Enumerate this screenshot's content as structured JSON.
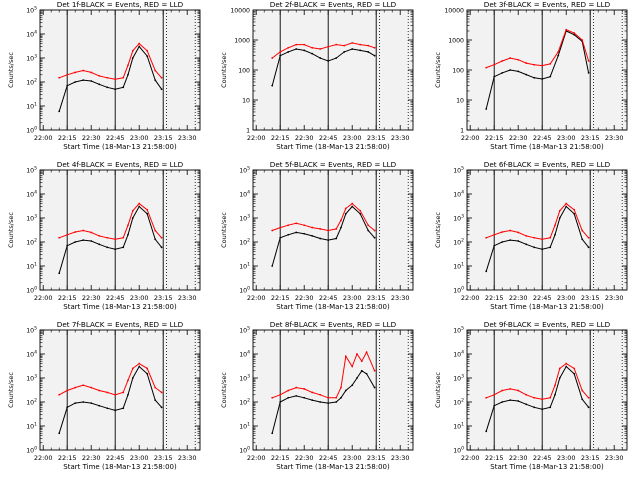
{
  "figure": {
    "xlabel": "Start Time (18-Mar-13 21:58:00)",
    "ylabel": "Counts/sec",
    "x_tick_labels": [
      "22:00",
      "22:15",
      "22:30",
      "22:45",
      "23:00",
      "23:15",
      "23:30"
    ],
    "colors": {
      "events": "#000000",
      "lld": "#ff0000",
      "background": "#f2f2f2"
    }
  },
  "chart_data": [
    {
      "type": "line",
      "title": "Det 1f-BLACK = Events, RED = LLD",
      "xlabel": "Start Time (18-Mar-13 21:58:00)",
      "ylabel": "Counts/sec",
      "x_ticks": [
        "22:00",
        "22:15",
        "22:30",
        "22:45",
        "23:00",
        "23:15",
        "23:30"
      ],
      "xlim": [
        "21:58",
        "23:38"
      ],
      "y_scale": "log",
      "ylim": [
        1,
        100000
      ],
      "y_ticks": [
        "10^0",
        "10^1",
        "10^2",
        "10^3",
        "10^4",
        "10^5"
      ],
      "vertical_lines_solid": [
        "22:15",
        "22:45",
        "23:15"
      ],
      "vertical_lines_dotted": [
        "23:17",
        "23:35"
      ],
      "x": [
        "22:10",
        "22:15",
        "22:20",
        "22:25",
        "22:30",
        "22:35",
        "22:40",
        "22:45",
        "22:50",
        "22:53",
        "22:56",
        "23:00",
        "23:05",
        "23:10",
        "23:14"
      ],
      "series": [
        {
          "name": "Events",
          "color": "#000000",
          "values": [
            6,
            70,
            100,
            120,
            110,
            80,
            60,
            50,
            60,
            200,
            1000,
            3000,
            1200,
            120,
            50
          ]
        },
        {
          "name": "LLD",
          "color": "#ff0000",
          "values": [
            150,
            200,
            250,
            300,
            250,
            180,
            150,
            130,
            150,
            500,
            2000,
            4000,
            2000,
            300,
            150
          ]
        }
      ]
    },
    {
      "type": "line",
      "title": "Det 2f-BLACK = Events, RED = LLD",
      "xlabel": "Start Time (18-Mar-13 21:58:00)",
      "ylabel": "Counts/sec",
      "x_ticks": [
        "22:00",
        "22:15",
        "22:30",
        "22:45",
        "23:00",
        "23:15",
        "23:30"
      ],
      "xlim": [
        "21:58",
        "23:38"
      ],
      "y_scale": "log",
      "ylim": [
        1,
        10000
      ],
      "y_ticks": [
        "1",
        "10",
        "100",
        "1000",
        "10000"
      ],
      "vertical_lines_solid": [
        "22:15",
        "22:45",
        "23:15"
      ],
      "vertical_lines_dotted": [
        "23:17",
        "23:35"
      ],
      "x": [
        "22:10",
        "22:15",
        "22:20",
        "22:25",
        "22:30",
        "22:35",
        "22:40",
        "22:45",
        "22:50",
        "22:55",
        "23:00",
        "23:05",
        "23:10",
        "23:14"
      ],
      "series": [
        {
          "name": "Events",
          "color": "#000000",
          "values": [
            30,
            300,
            400,
            500,
            450,
            350,
            250,
            200,
            250,
            400,
            500,
            450,
            400,
            300
          ]
        },
        {
          "name": "LLD",
          "color": "#ff0000",
          "values": [
            250,
            400,
            550,
            700,
            700,
            550,
            500,
            600,
            700,
            650,
            800,
            700,
            650,
            550
          ]
        }
      ]
    },
    {
      "type": "line",
      "title": "Det 3f-BLACK = Events, RED = LLD",
      "xlabel": "Start Time (18-Mar-13 21:58:00)",
      "ylabel": "Counts/sec",
      "x_ticks": [
        "22:00",
        "22:15",
        "22:30",
        "22:45",
        "23:00",
        "23:15",
        "23:30"
      ],
      "xlim": [
        "21:58",
        "23:38"
      ],
      "y_scale": "log",
      "ylim": [
        1,
        10000
      ],
      "y_ticks": [
        "1",
        "10",
        "100",
        "1000",
        "10000"
      ],
      "vertical_lines_solid": [
        "22:15",
        "22:45",
        "23:15"
      ],
      "vertical_lines_dotted": [
        "23:17",
        "23:35"
      ],
      "x": [
        "22:10",
        "22:15",
        "22:20",
        "22:25",
        "22:30",
        "22:35",
        "22:40",
        "22:45",
        "22:50",
        "22:55",
        "23:00",
        "23:05",
        "23:10",
        "23:14"
      ],
      "series": [
        {
          "name": "Events",
          "color": "#000000",
          "values": [
            5,
            60,
            80,
            100,
            90,
            70,
            55,
            50,
            60,
            300,
            2000,
            1500,
            900,
            80
          ]
        },
        {
          "name": "LLD",
          "color": "#ff0000",
          "values": [
            120,
            150,
            200,
            250,
            220,
            170,
            150,
            140,
            160,
            400,
            2200,
            1700,
            1000,
            200
          ]
        }
      ]
    },
    {
      "type": "line",
      "title": "Det 4f-BLACK = Events, RED = LLD",
      "xlabel": "Start Time (18-Mar-13 21:58:00)",
      "ylabel": "Counts/sec",
      "x_ticks": [
        "22:00",
        "22:15",
        "22:30",
        "22:45",
        "23:00",
        "23:15",
        "23:30"
      ],
      "xlim": [
        "21:58",
        "23:38"
      ],
      "y_scale": "log",
      "ylim": [
        1,
        100000
      ],
      "y_ticks": [
        "10^0",
        "10^1",
        "10^2",
        "10^3",
        "10^4",
        "10^5"
      ],
      "vertical_lines_solid": [
        "22:15",
        "22:45",
        "23:15"
      ],
      "vertical_lines_dotted": [
        "23:17",
        "23:35"
      ],
      "x": [
        "22:10",
        "22:15",
        "22:20",
        "22:25",
        "22:30",
        "22:35",
        "22:40",
        "22:45",
        "22:50",
        "22:53",
        "22:56",
        "23:00",
        "23:05",
        "23:10",
        "23:14"
      ],
      "series": [
        {
          "name": "Events",
          "color": "#000000",
          "values": [
            5,
            70,
            100,
            120,
            110,
            80,
            60,
            50,
            60,
            200,
            1000,
            3000,
            1500,
            130,
            60
          ]
        },
        {
          "name": "LLD",
          "color": "#ff0000",
          "values": [
            150,
            200,
            260,
            300,
            250,
            180,
            150,
            130,
            150,
            500,
            2000,
            4000,
            2200,
            300,
            150
          ]
        }
      ]
    },
    {
      "type": "line",
      "title": "Det 5f-BLACK = Events, RED = LLD",
      "xlabel": "Start Time (18-Mar-13 21:58:00)",
      "ylabel": "Counts/sec",
      "x_ticks": [
        "22:00",
        "22:15",
        "22:30",
        "22:45",
        "23:00",
        "23:15",
        "23:30"
      ],
      "xlim": [
        "21:58",
        "23:38"
      ],
      "y_scale": "log",
      "ylim": [
        1,
        100000
      ],
      "y_ticks": [
        "10^0",
        "10^1",
        "10^2",
        "10^3",
        "10^4",
        "10^5"
      ],
      "vertical_lines_solid": [
        "22:15",
        "22:45",
        "23:15"
      ],
      "vertical_lines_dotted": [
        "23:17",
        "23:35"
      ],
      "x": [
        "22:10",
        "22:15",
        "22:20",
        "22:25",
        "22:30",
        "22:35",
        "22:40",
        "22:45",
        "22:50",
        "22:53",
        "22:56",
        "23:00",
        "23:05",
        "23:10",
        "23:14"
      ],
      "series": [
        {
          "name": "Events",
          "color": "#000000",
          "values": [
            10,
            150,
            200,
            250,
            220,
            180,
            140,
            120,
            140,
            400,
            1500,
            3000,
            1500,
            300,
            150
          ]
        },
        {
          "name": "LLD",
          "color": "#ff0000",
          "values": [
            300,
            400,
            500,
            600,
            500,
            400,
            350,
            300,
            350,
            800,
            2500,
            4000,
            2000,
            500,
            300
          ]
        }
      ]
    },
    {
      "type": "line",
      "title": "Det 6f-BLACK = Events, RED = LLD",
      "xlabel": "Start Time (18-Mar-13 21:58:00)",
      "ylabel": "Counts/sec",
      "x_ticks": [
        "22:00",
        "22:15",
        "22:30",
        "22:45",
        "23:00",
        "23:15",
        "23:30"
      ],
      "xlim": [
        "21:58",
        "23:38"
      ],
      "y_scale": "log",
      "ylim": [
        1,
        100000
      ],
      "y_ticks": [
        "10^0",
        "10^1",
        "10^2",
        "10^3",
        "10^4",
        "10^5"
      ],
      "vertical_lines_solid": [
        "22:15",
        "22:45",
        "23:15"
      ],
      "vertical_lines_dotted": [
        "23:17",
        "23:35"
      ],
      "x": [
        "22:10",
        "22:15",
        "22:20",
        "22:25",
        "22:30",
        "22:35",
        "22:40",
        "22:45",
        "22:50",
        "22:53",
        "22:56",
        "23:00",
        "23:05",
        "23:10",
        "23:14"
      ],
      "series": [
        {
          "name": "Events",
          "color": "#000000",
          "values": [
            6,
            70,
            100,
            120,
            110,
            80,
            60,
            50,
            60,
            200,
            1000,
            3000,
            1500,
            130,
            60
          ]
        },
        {
          "name": "LLD",
          "color": "#ff0000",
          "values": [
            150,
            200,
            260,
            300,
            250,
            180,
            150,
            130,
            150,
            500,
            2000,
            4000,
            2200,
            300,
            150
          ]
        }
      ]
    },
    {
      "type": "line",
      "title": "Det 7f-BLACK = Events, RED = LLD",
      "xlabel": "Start Time (18-Mar-13 21:58:00)",
      "ylabel": "Counts/sec",
      "x_ticks": [
        "22:00",
        "22:15",
        "22:30",
        "22:45",
        "23:00",
        "23:15",
        "23:30"
      ],
      "xlim": [
        "21:58",
        "23:38"
      ],
      "y_scale": "log",
      "ylim": [
        1,
        100000
      ],
      "y_ticks": [
        "10^0",
        "10^1",
        "10^2",
        "10^3",
        "10^4",
        "10^5"
      ],
      "vertical_lines_solid": [
        "22:15",
        "22:45",
        "23:15"
      ],
      "vertical_lines_dotted": [
        "23:17",
        "23:35"
      ],
      "x": [
        "22:10",
        "22:15",
        "22:20",
        "22:25",
        "22:30",
        "22:35",
        "22:40",
        "22:45",
        "22:50",
        "22:53",
        "22:56",
        "23:00",
        "23:05",
        "23:10",
        "23:14"
      ],
      "series": [
        {
          "name": "Events",
          "color": "#000000",
          "values": [
            5,
            60,
            90,
            100,
            90,
            70,
            55,
            45,
            55,
            200,
            1000,
            3000,
            1500,
            120,
            60
          ]
        },
        {
          "name": "LLD",
          "color": "#ff0000",
          "values": [
            200,
            300,
            400,
            500,
            400,
            300,
            250,
            200,
            250,
            800,
            2500,
            4000,
            2500,
            400,
            250
          ]
        }
      ]
    },
    {
      "type": "line",
      "title": "Det 8f-BLACK = Events, RED = LLD",
      "xlabel": "Start Time (18-Mar-13 21:58:00)",
      "ylabel": "Counts/sec",
      "x_ticks": [
        "22:00",
        "22:15",
        "22:30",
        "22:45",
        "23:00",
        "23:15",
        "23:30"
      ],
      "xlim": [
        "21:58",
        "23:38"
      ],
      "y_scale": "log",
      "ylim": [
        1,
        100000
      ],
      "y_ticks": [
        "10^0",
        "10^1",
        "10^2",
        "10^3",
        "10^4",
        "10^5"
      ],
      "vertical_lines_solid": [
        "22:15",
        "22:45",
        "23:15"
      ],
      "vertical_lines_dotted": [
        "23:17",
        "23:35"
      ],
      "x": [
        "22:10",
        "22:15",
        "22:20",
        "22:25",
        "22:30",
        "22:35",
        "22:40",
        "22:45",
        "22:50",
        "22:53",
        "22:56",
        "23:00",
        "23:03",
        "23:06",
        "23:09",
        "23:14"
      ],
      "series": [
        {
          "name": "Events",
          "color": "#000000",
          "values": [
            5,
            100,
            150,
            180,
            150,
            120,
            100,
            90,
            100,
            150,
            300,
            500,
            1000,
            2000,
            1500,
            400
          ]
        },
        {
          "name": "LLD",
          "color": "#ff0000",
          "values": [
            150,
            200,
            300,
            400,
            350,
            250,
            200,
            150,
            150,
            400,
            8000,
            3000,
            10000,
            5000,
            12000,
            2000
          ]
        }
      ]
    },
    {
      "type": "line",
      "title": "Det 9f-BLACK = Events, RED = LLD",
      "xlabel": "Start Time (18-Mar-13 21:58:00)",
      "ylabel": "Counts/sec",
      "x_ticks": [
        "22:00",
        "22:15",
        "22:30",
        "22:45",
        "23:00",
        "23:15",
        "23:30"
      ],
      "xlim": [
        "21:58",
        "23:38"
      ],
      "y_scale": "log",
      "ylim": [
        1,
        100000
      ],
      "y_ticks": [
        "10^0",
        "10^1",
        "10^2",
        "10^3",
        "10^4",
        "10^5"
      ],
      "vertical_lines_solid": [
        "22:15",
        "22:45",
        "23:15"
      ],
      "vertical_lines_dotted": [
        "23:17",
        "23:35"
      ],
      "x": [
        "22:10",
        "22:15",
        "22:20",
        "22:25",
        "22:30",
        "22:35",
        "22:40",
        "22:45",
        "22:50",
        "22:53",
        "22:56",
        "23:00",
        "23:05",
        "23:10",
        "23:14"
      ],
      "series": [
        {
          "name": "Events",
          "color": "#000000",
          "values": [
            6,
            70,
            100,
            120,
            110,
            80,
            60,
            50,
            60,
            200,
            1000,
            3000,
            1500,
            130,
            60
          ]
        },
        {
          "name": "LLD",
          "color": "#ff0000",
          "values": [
            150,
            200,
            300,
            350,
            300,
            200,
            150,
            130,
            150,
            500,
            2500,
            4000,
            2500,
            300,
            150
          ]
        }
      ]
    }
  ]
}
